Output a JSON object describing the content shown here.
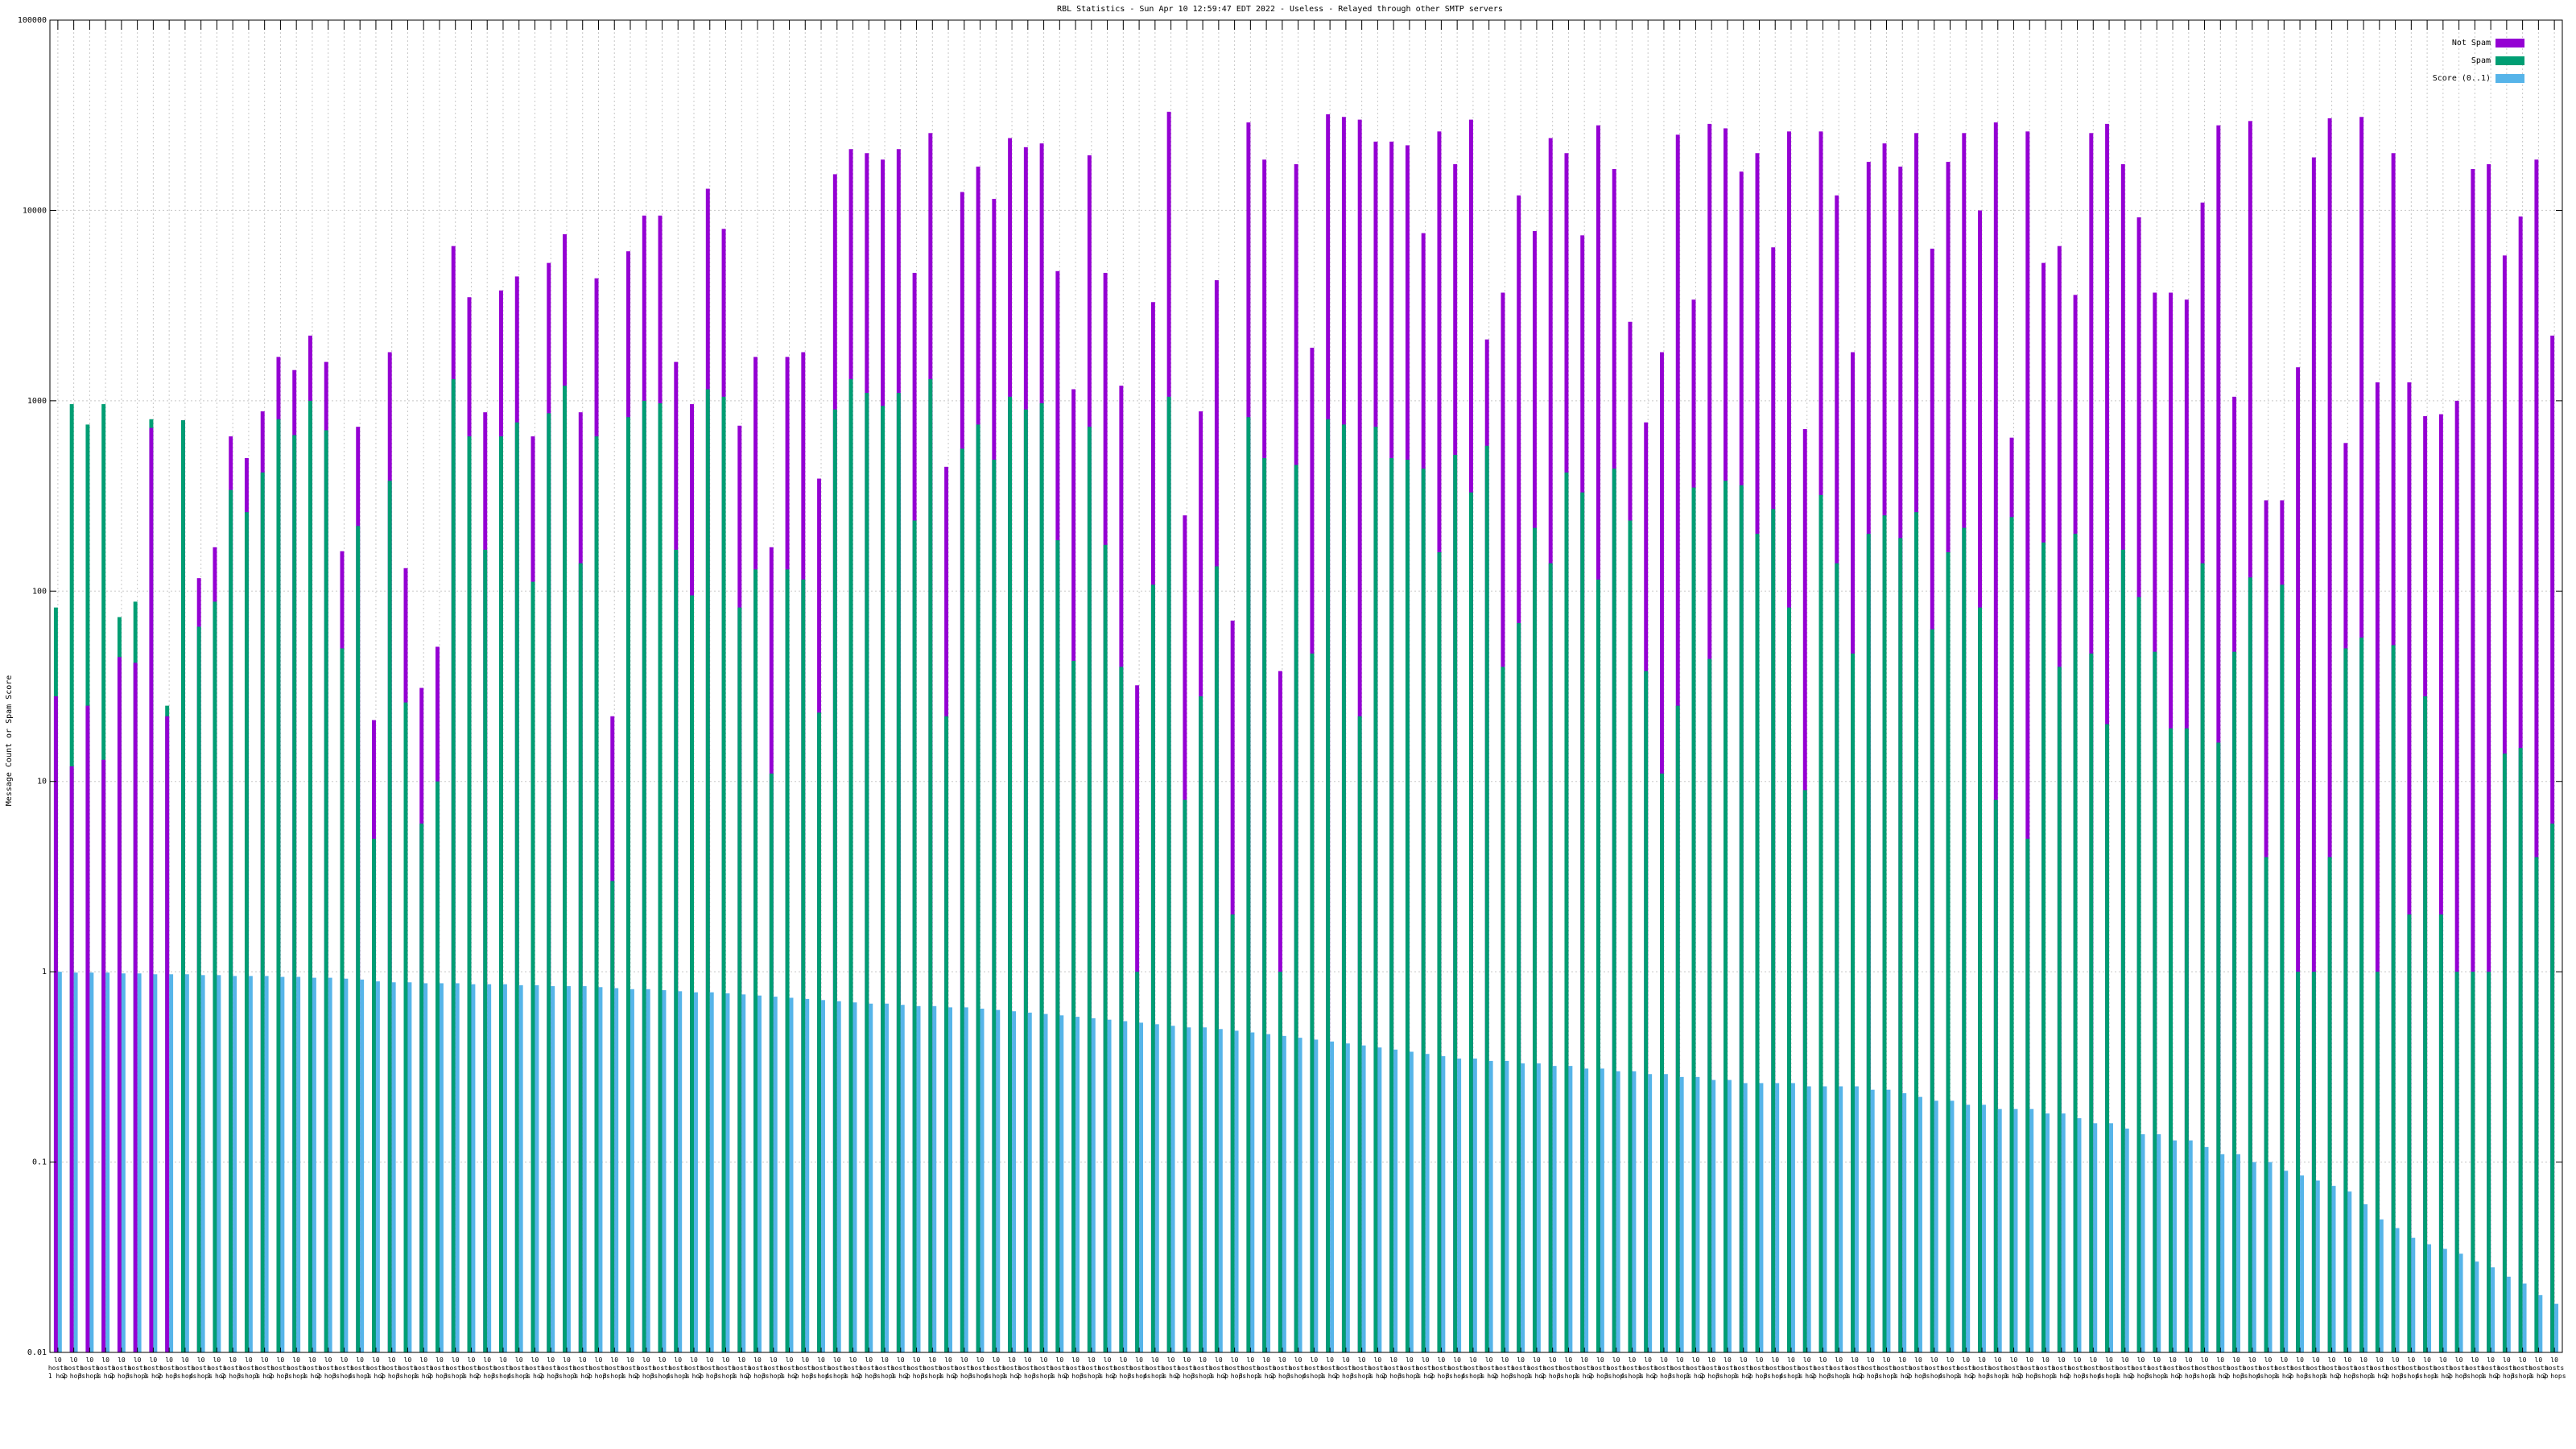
{
  "chart_data": {
    "type": "bar",
    "title": "RBL Statistics - Sun Apr 10 12:59:47 EDT 2022 - Useless - Relayed through other SMTP servers",
    "xlabel": "",
    "ylabel": "Message Count or Spam Score",
    "yscale": "log",
    "ylim": [
      0.01,
      100000
    ],
    "yticks": [
      0.01,
      0.1,
      1,
      10,
      100,
      1000,
      10000,
      100000
    ],
    "ytick_labels": [
      "0.01",
      "0.1",
      "1",
      "10",
      "100",
      "1000",
      "10000",
      "100000"
    ],
    "grid": true,
    "legend_position": "top-right",
    "colors": {
      "not_spam": "#9400d3",
      "spam": "#009e73",
      "score": "#56b4e9"
    },
    "series": [
      {
        "name": "Not Spam",
        "values": [
          28,
          12,
          25,
          13,
          45,
          42,
          720,
          22,
          790,
          117,
          170,
          650,
          500,
          880,
          1700,
          1450,
          2200,
          1600,
          162,
          730,
          21,
          1800,
          132,
          31,
          51,
          6500,
          3500,
          870,
          3800,
          4500,
          650,
          5300,
          7500,
          870,
          4400,
          22,
          6100,
          9400,
          9400,
          1600,
          960,
          13000,
          8000,
          740,
          1700,
          170,
          1700,
          1800,
          390,
          15500,
          21000,
          20000,
          18500,
          21000,
          4700,
          25500,
          450,
          12500,
          17000,
          11500,
          24000,
          21500,
          22500,
          4800,
          1150,
          19500,
          4700,
          1200,
          32,
          3300,
          33000,
          250,
          880,
          4300,
          70,
          29000,
          18500,
          38,
          17500,
          1900,
          32000,
          31000,
          30000,
          23000,
          23000,
          22000,
          7600,
          26000,
          17500,
          30000,
          2100,
          3700,
          12000,
          7800,
          24000,
          20000,
          7400,
          28000,
          16500,
          2600,
          770,
          1800,
          25000,
          3400,
          28500,
          27000,
          16000,
          20000,
          6400,
          26000,
          710,
          26000,
          12000,
          1800,
          18000,
          22500,
          17000,
          25500,
          6300,
          18000,
          25500,
          10000,
          29000,
          640,
          26000,
          5300,
          6500,
          3600,
          25500,
          28500,
          17500,
          9200,
          3700,
          3700,
          3400,
          11000,
          28000,
          1050,
          29500,
          300,
          300,
          1500,
          19000,
          30500,
          600,
          31000,
          1250,
          20000,
          1250,
          830,
          850,
          1000,
          16500,
          17500,
          5800,
          9300,
          18500,
          2200
        ],
        "partial": true
      },
      {
        "name": "Spam",
        "values": [
          82,
          960,
          750,
          960,
          73,
          88,
          800,
          25,
          790,
          65,
          88,
          340,
          260,
          420,
          800,
          660,
          1000,
          700,
          50,
          220,
          5,
          380,
          26,
          6,
          10,
          1300,
          650,
          165,
          650,
          770,
          112,
          860,
          1200,
          140,
          650,
          3,
          820,
          1000,
          970,
          165,
          95,
          1150,
          1050,
          82,
          130,
          11,
          130,
          115,
          23,
          900,
          1300,
          1100,
          940,
          1100,
          235,
          1300,
          22,
          560,
          750,
          490,
          1050,
          900,
          970,
          185,
          43,
          730,
          175,
          40,
          1,
          108,
          1050,
          8,
          28,
          135,
          2,
          820,
          500,
          1,
          460,
          47,
          800,
          750,
          22,
          730,
          500,
          490,
          440,
          160,
          520,
          330,
          580,
          40,
          68,
          215,
          140,
          420,
          330,
          115,
          440,
          235,
          38,
          11,
          25,
          350,
          44,
          380,
          360,
          200,
          270,
          82,
          9,
          320,
          140,
          47,
          200,
          250,
          190,
          260,
          63,
          160,
          215,
          82,
          8,
          245,
          5,
          180,
          40,
          200,
          47,
          20,
          165,
          93,
          48,
          19,
          19,
          140,
          16,
          48,
          118,
          4,
          108,
          1,
          1,
          4,
          50,
          57,
          1,
          52,
          2,
          28,
          2,
          1,
          1,
          1,
          14,
          15,
          4,
          6,
          9,
          1
        ],
        "partial": true
      },
      {
        "name": "Score (0..1)",
        "values": [
          1.0,
          0.99,
          0.99,
          0.99,
          0.98,
          0.98,
          0.97,
          0.97,
          0.97,
          0.96,
          0.96,
          0.95,
          0.95,
          0.95,
          0.94,
          0.94,
          0.93,
          0.93,
          0.92,
          0.91,
          0.89,
          0.88,
          0.88,
          0.87,
          0.87,
          0.87,
          0.86,
          0.86,
          0.86,
          0.85,
          0.85,
          0.84,
          0.84,
          0.84,
          0.83,
          0.82,
          0.81,
          0.81,
          0.8,
          0.79,
          0.78,
          0.78,
          0.77,
          0.76,
          0.75,
          0.74,
          0.73,
          0.72,
          0.71,
          0.7,
          0.69,
          0.68,
          0.68,
          0.67,
          0.66,
          0.66,
          0.65,
          0.65,
          0.64,
          0.63,
          0.62,
          0.61,
          0.6,
          0.59,
          0.58,
          0.57,
          0.56,
          0.55,
          0.54,
          0.53,
          0.52,
          0.51,
          0.51,
          0.5,
          0.49,
          0.48,
          0.47,
          0.46,
          0.45,
          0.44,
          0.43,
          0.42,
          0.41,
          0.4,
          0.39,
          0.38,
          0.37,
          0.36,
          0.35,
          0.35,
          0.34,
          0.34,
          0.33,
          0.33,
          0.32,
          0.32,
          0.31,
          0.31,
          0.3,
          0.3,
          0.29,
          0.29,
          0.28,
          0.28,
          0.27,
          0.27,
          0.26,
          0.26,
          0.26,
          0.26,
          0.25,
          0.25,
          0.25,
          0.25,
          0.24,
          0.24,
          0.23,
          0.22,
          0.21,
          0.21,
          0.2,
          0.2,
          0.19,
          0.19,
          0.19,
          0.18,
          0.18,
          0.17,
          0.16,
          0.16,
          0.15,
          0.14,
          0.14,
          0.13,
          0.13,
          0.12,
          0.11,
          0.11,
          0.1,
          0.1,
          0.09,
          0.085,
          0.08,
          0.075,
          0.07,
          0.06,
          0.05,
          0.045,
          0.04,
          0.037,
          0.035,
          0.033,
          0.03,
          0.028,
          0.025,
          0.023,
          0.02,
          0.018,
          0.016,
          0.015
        ],
        "partial": true
      }
    ],
    "legend": [
      "Not Spam",
      "Spam",
      "Score (0..1)"
    ],
    "category_label_lines": [
      [
        "l0",
        "l0",
        "l0",
        "l0",
        "l0",
        "l0",
        "l0",
        "l0",
        "l0",
        "l0"
      ],
      [
        "hosts",
        "hosts",
        "hosts",
        "hosts",
        "hosts",
        "hosts",
        "hosts",
        "hosts",
        "hosts",
        "hosts"
      ],
      [
        "1 hop",
        "2 hops",
        "3 hops",
        "1 hop",
        "2 hops",
        "3 hops",
        "1 hop",
        "2 hops",
        "3 hops",
        "4 hops"
      ]
    ]
  }
}
